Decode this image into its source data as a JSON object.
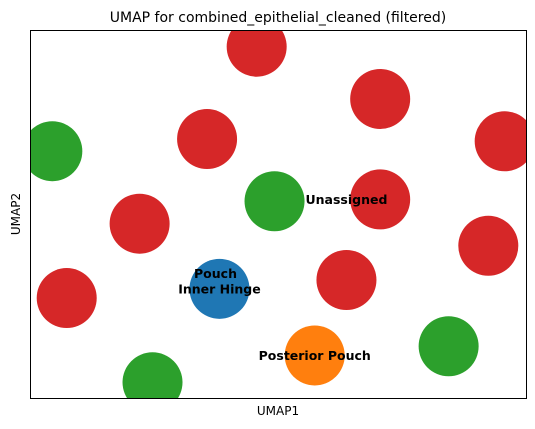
{
  "chart_data": {
    "type": "scatter",
    "title": "UMAP for combined_epithelial_cleaned (filtered)",
    "xlabel": "UMAP1",
    "ylabel": "UMAP2",
    "xticks": false,
    "yticks": false,
    "xlim": [
      0,
      100
    ],
    "ylim": [
      0,
      100
    ],
    "colors": {
      "red": "#d62728",
      "green": "#2ca02c",
      "blue": "#1f77b4",
      "orange": "#ff7f0e"
    },
    "points": [
      {
        "x": 45.6,
        "y": 95.6,
        "color": "red"
      },
      {
        "x": 70.5,
        "y": 81.4,
        "color": "red"
      },
      {
        "x": 35.6,
        "y": 70.5,
        "color": "red"
      },
      {
        "x": 95.6,
        "y": 69.9,
        "color": "red"
      },
      {
        "x": 4.4,
        "y": 67.2,
        "color": "green"
      },
      {
        "x": 49.2,
        "y": 53.6,
        "color": "green"
      },
      {
        "x": 70.5,
        "y": 54.1,
        "color": "red"
      },
      {
        "x": 22.0,
        "y": 47.5,
        "color": "red"
      },
      {
        "x": 92.3,
        "y": 41.5,
        "color": "red"
      },
      {
        "x": 63.7,
        "y": 32.2,
        "color": "red"
      },
      {
        "x": 7.3,
        "y": 27.3,
        "color": "red"
      },
      {
        "x": 38.1,
        "y": 29.8,
        "color": "blue"
      },
      {
        "x": 57.3,
        "y": 11.7,
        "color": "orange"
      },
      {
        "x": 84.3,
        "y": 14.2,
        "color": "green"
      },
      {
        "x": 24.6,
        "y": 4.4,
        "color": "green"
      }
    ],
    "annotations": [
      {
        "text": "Unassigned",
        "x": 63.7,
        "y": 54.1
      },
      {
        "text": "Pouch",
        "x": 37.3,
        "y": 33.9
      },
      {
        "text": "Inner Hinge",
        "x": 38.1,
        "y": 29.8
      },
      {
        "text": "Posterior Pouch",
        "x": 57.3,
        "y": 11.7
      }
    ]
  }
}
